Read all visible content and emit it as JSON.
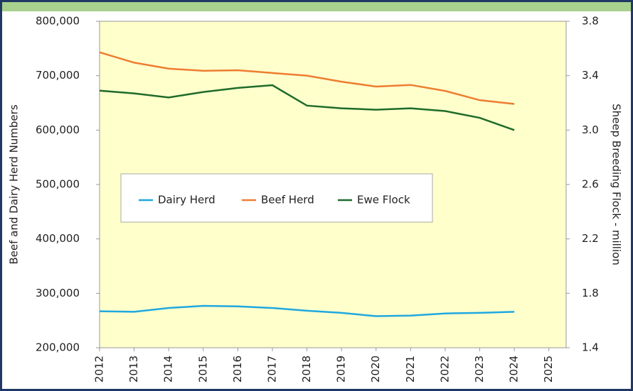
{
  "chart_data": {
    "type": "line",
    "x": [
      2012,
      2013,
      2014,
      2015,
      2016,
      2017,
      2018,
      2019,
      2020,
      2021,
      2022,
      2023,
      2024
    ],
    "xlim": [
      2012,
      2025.5
    ],
    "xticks": [
      2012,
      2013,
      2014,
      2015,
      2016,
      2017,
      2018,
      2019,
      2020,
      2021,
      2022,
      2023,
      2024,
      2025
    ],
    "ylabel": "Beef and Dairy Herd Numbers",
    "y2label": "Sheep Breeding Flock - million",
    "ylim": [
      200000,
      800000
    ],
    "yticks": [
      {
        "value": 200000,
        "label": "200,000"
      },
      {
        "value": 300000,
        "label": "300,000"
      },
      {
        "value": 400000,
        "label": "400,000"
      },
      {
        "value": 500000,
        "label": "500,000"
      },
      {
        "value": 600000,
        "label": "600,000"
      },
      {
        "value": 700000,
        "label": "700,000"
      },
      {
        "value": 800000,
        "label": "800,000"
      }
    ],
    "y2lim": [
      1.4,
      3.8
    ],
    "y2ticks": [
      1.4,
      1.8,
      2.2,
      2.6,
      {
        "value": 3,
        "label": "3.0"
      },
      3.4,
      3.8
    ],
    "grid": false,
    "legend": "center",
    "series": [
      {
        "name": "Dairy Herd",
        "color": "#1fa8e0",
        "values": [
          267000,
          266000,
          273000,
          277000,
          276000,
          273000,
          268000,
          264000,
          258000,
          259000,
          263000,
          264000,
          266000
        ]
      },
      {
        "name": "Beef Herd",
        "color": "#ed7d31",
        "values": [
          743000,
          724000,
          713000,
          709000,
          710000,
          705000,
          700000,
          689000,
          680000,
          683000,
          672000,
          655000,
          648000
        ]
      },
      {
        "name": "Ewe Flock",
        "color": "#1e6b2a",
        "axis": "y2",
        "values": [
          3.29,
          3.27,
          3.24,
          3.28,
          3.31,
          3.33,
          3.18,
          3.16,
          3.15,
          3.16,
          3.14,
          3.09,
          3.0
        ]
      }
    ]
  }
}
